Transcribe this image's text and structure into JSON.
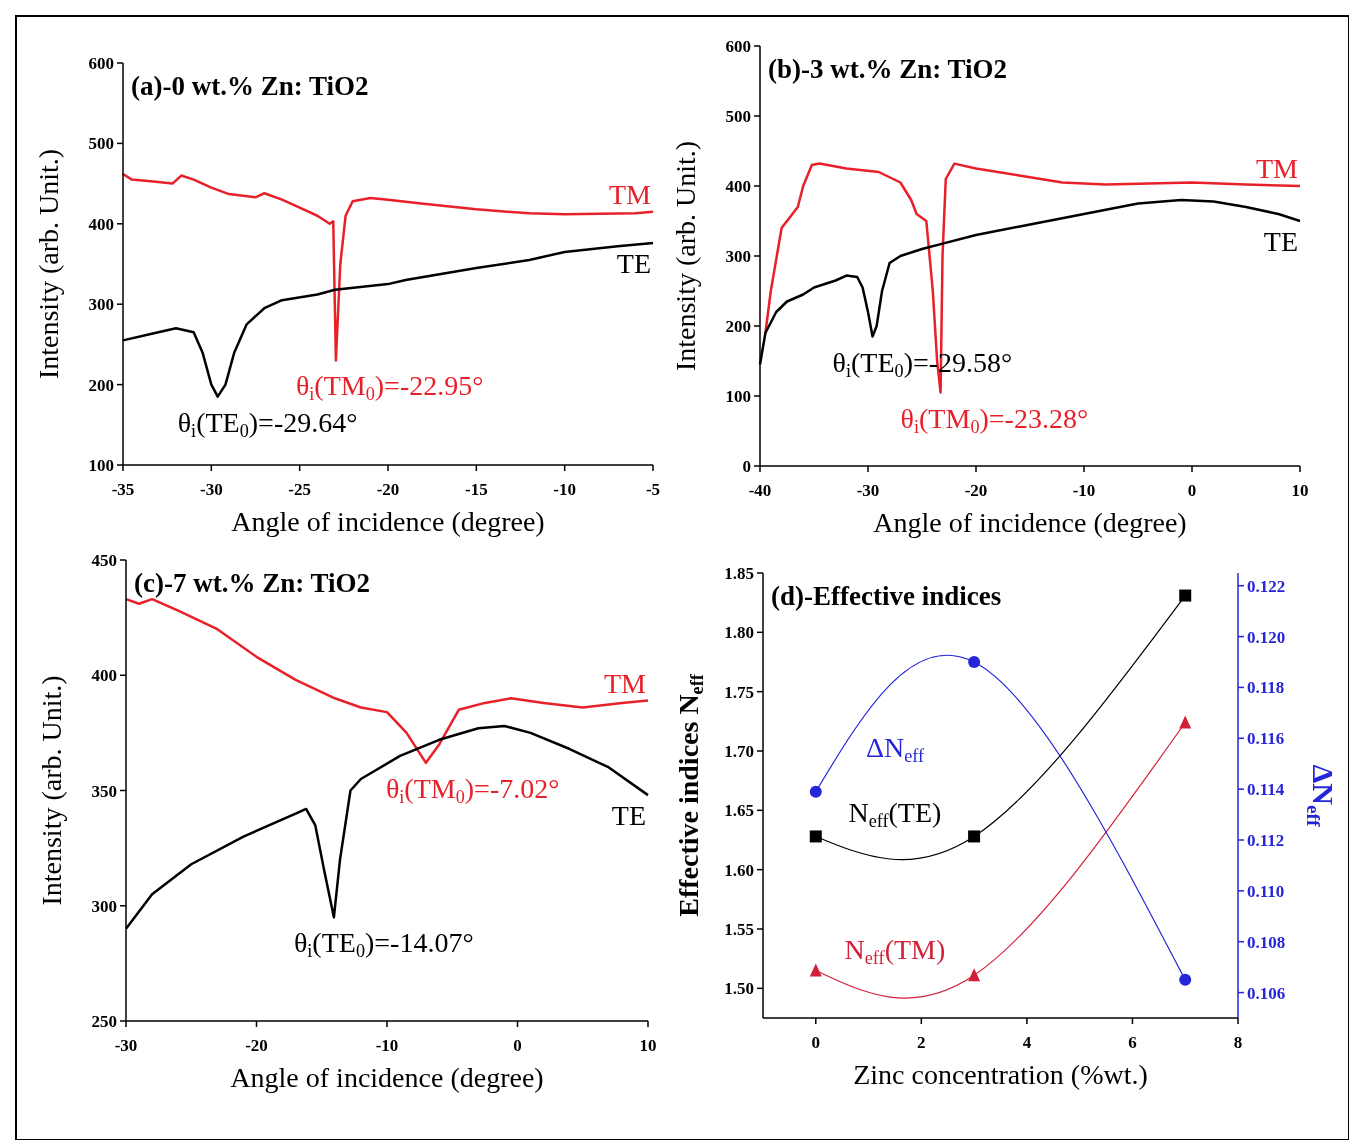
{
  "chart_data": [
    {
      "type": "line",
      "title": "(a)-0 wt.% Zn: TiO2",
      "xlabel": "Angle of incidence (degree)",
      "ylabel": "Intensity (arb. Unit.)",
      "xlim": [
        -35,
        -5
      ],
      "xticks": [
        -35,
        -30,
        -25,
        -20,
        -15,
        -10,
        -5
      ],
      "ylim": [
        100,
        600
      ],
      "yticks": [
        100,
        200,
        300,
        400,
        500,
        600
      ],
      "marker": "none",
      "series": [
        {
          "name": "TM",
          "color": "#e8202a",
          "x": [
            -35,
            -34.5,
            -33,
            -32.2,
            -31.7,
            -31,
            -30,
            -29,
            -27.5,
            -27,
            -26,
            -25,
            -24,
            -23.3,
            -23.1,
            -22.95,
            -22.7,
            -22.4,
            -22,
            -21,
            -20,
            -18,
            -15,
            -12,
            -10,
            -6,
            -5
          ],
          "values": [
            462,
            455,
            452,
            450,
            460,
            455,
            445,
            437,
            433,
            438,
            430,
            420,
            410,
            400,
            403,
            230,
            350,
            410,
            428,
            432,
            430,
            425,
            418,
            413,
            412,
            413,
            415
          ]
        },
        {
          "name": "TE",
          "color": "#000000",
          "x": [
            -35,
            -33,
            -32,
            -31,
            -30.5,
            -30,
            -29.64,
            -29.2,
            -28.7,
            -28,
            -27,
            -26,
            -24,
            -23,
            -20,
            -19,
            -15,
            -12,
            -10,
            -7,
            -5
          ],
          "values": [
            255,
            265,
            270,
            265,
            240,
            200,
            185,
            200,
            240,
            275,
            295,
            305,
            312,
            318,
            325,
            330,
            345,
            355,
            365,
            372,
            376
          ]
        }
      ],
      "annotations": [
        {
          "text": "θ$_{i}$(TM$_{0}$)=-22.95°",
          "x": -22.95,
          "y": 230
        },
        {
          "text": "θ$_{i}$(TE$_{0}$)=-29.64°",
          "x": -29.64,
          "y": 185
        }
      ]
    },
    {
      "type": "line",
      "title": "(b)-3 wt.% Zn: TiO2",
      "xlabel": "Angle of incidence (degree)",
      "ylabel": "Intensity (arb. Unit.)",
      "xlim": [
        -40,
        10
      ],
      "xticks": [
        -40,
        -30,
        -20,
        -10,
        0,
        10
      ],
      "ylim": [
        0,
        600
      ],
      "yticks": [
        0,
        100,
        200,
        300,
        400,
        500,
        600
      ],
      "marker": "none",
      "series": [
        {
          "name": "TM",
          "color": "#e8202a",
          "x": [
            -39.5,
            -39,
            -38,
            -37,
            -36.5,
            -36,
            -35.2,
            -34.5,
            -32,
            -29,
            -27,
            -26,
            -25.5,
            -24.6,
            -24,
            -23.6,
            -23.28,
            -23.1,
            -22.8,
            -22,
            -20,
            -16,
            -12,
            -8,
            0,
            5,
            10
          ],
          "values": [
            190,
            250,
            340,
            360,
            370,
            400,
            430,
            432,
            425,
            420,
            405,
            380,
            360,
            350,
            250,
            150,
            105,
            300,
            410,
            432,
            425,
            415,
            405,
            402,
            405,
            402,
            400
          ]
        },
        {
          "name": "TE",
          "color": "#000000",
          "x": [
            -40,
            -39.5,
            -38.5,
            -37.5,
            -36,
            -35,
            -33,
            -32,
            -31,
            -30.5,
            -30,
            -29.58,
            -29.2,
            -28.7,
            -28,
            -27,
            -25,
            -23,
            -20,
            -15,
            -10,
            -5,
            -1,
            2,
            5,
            8,
            10
          ],
          "values": [
            145,
            190,
            220,
            235,
            245,
            255,
            265,
            272,
            270,
            255,
            220,
            185,
            200,
            250,
            290,
            300,
            310,
            318,
            330,
            345,
            360,
            375,
            380,
            378,
            370,
            360,
            350
          ]
        }
      ],
      "annotations": [
        {
          "text": "θ$_{i}$(TE$_{0}$)=-29.58°",
          "x": -29.58,
          "y": 185
        },
        {
          "text": "θ$_{i}$(TM$_{0}$)=-23.28°",
          "x": -23.28,
          "y": 105
        }
      ]
    },
    {
      "type": "line",
      "title": "(c)-7 wt.% Zn: TiO2",
      "xlabel": "Angle of incidence (degree)",
      "ylabel": "Intensity (arb. Unit.)",
      "xlim": [
        -30,
        10
      ],
      "xticks": [
        -30,
        -20,
        -10,
        0,
        10
      ],
      "ylim": [
        250,
        450
      ],
      "yticks": [
        250,
        300,
        350,
        400,
        450
      ],
      "marker": "none",
      "series": [
        {
          "name": "TM",
          "color": "#e8202a",
          "x": [
            -30,
            -29,
            -28,
            -26,
            -23,
            -20,
            -17,
            -14,
            -12,
            -10,
            -8.5,
            -7.02,
            -6,
            -4.5,
            -2.5,
            -0.5,
            2,
            5,
            8,
            10
          ],
          "values": [
            433,
            431,
            433,
            428,
            420,
            408,
            398,
            390,
            386,
            384,
            375,
            362,
            370,
            385,
            388,
            390,
            388,
            386,
            388,
            389
          ]
        },
        {
          "name": "TE",
          "color": "#000000",
          "x": [
            -30,
            -28,
            -25,
            -21,
            -17,
            -16.2,
            -15.5,
            -14.8,
            -14.07,
            -13.6,
            -12.8,
            -12,
            -9,
            -6,
            -3,
            -1,
            1,
            4,
            7,
            10
          ],
          "values": [
            290,
            305,
            318,
            330,
            340,
            342,
            335,
            315,
            295,
            320,
            350,
            355,
            365,
            372,
            377,
            378,
            375,
            368,
            360,
            348
          ]
        }
      ],
      "annotations": [
        {
          "text": "θ$_{i}$(TM$_{0}$)=-7.02°",
          "x": -7.02,
          "y": 362
        },
        {
          "text": "θ$_{i}$(TE$_{0}$)=-14.07°",
          "x": -14.07,
          "y": 295
        }
      ]
    },
    {
      "type": "line",
      "title": "(d)-Effective indices",
      "xlabel": "Zinc concentration (%wt.)",
      "ylabel": "Effective indices N$_{eff}$",
      "y2label": "ΔN$_{eff}$",
      "xlim": [
        -1,
        8
      ],
      "xticks": [
        0,
        2,
        4,
        6,
        8
      ],
      "ylim": [
        1.475,
        1.85
      ],
      "yticks": [
        {
          "value": 1.5,
          "label": "1.50"
        },
        1.55,
        {
          "value": 1.6,
          "label": "1.60"
        },
        1.65,
        {
          "value": 1.7,
          "label": "1.70"
        },
        1.75,
        {
          "value": 1.8,
          "label": "1.80"
        },
        1.85
      ],
      "y2lim": [
        0.105,
        0.1225
      ],
      "y2ticks": [
        0.106,
        0.108,
        {
          "value": 0.11,
          "label": "0.110"
        },
        0.112,
        0.114,
        0.116,
        0.118,
        {
          "value": 0.12,
          "label": "0.120"
        },
        0.122
      ],
      "series": [
        {
          "name": "N$_{eff}$(TE)",
          "color": "#000000",
          "marker": "square",
          "x": [
            0,
            3,
            7
          ],
          "values": [
            1.628,
            1.628,
            1.831
          ]
        },
        {
          "name": "N$_{eff}$(TM)",
          "color": "#d2203a",
          "marker": "triangle",
          "x": [
            0,
            3,
            7
          ],
          "values": [
            1.515,
            1.511,
            1.724
          ]
        },
        {
          "name": "ΔN$_{eff}$",
          "color": "#2626d9",
          "marker": "circle",
          "axis": "y2",
          "x": [
            0,
            3,
            7
          ],
          "values": [
            0.1139,
            0.119,
            0.1065
          ]
        }
      ]
    }
  ]
}
